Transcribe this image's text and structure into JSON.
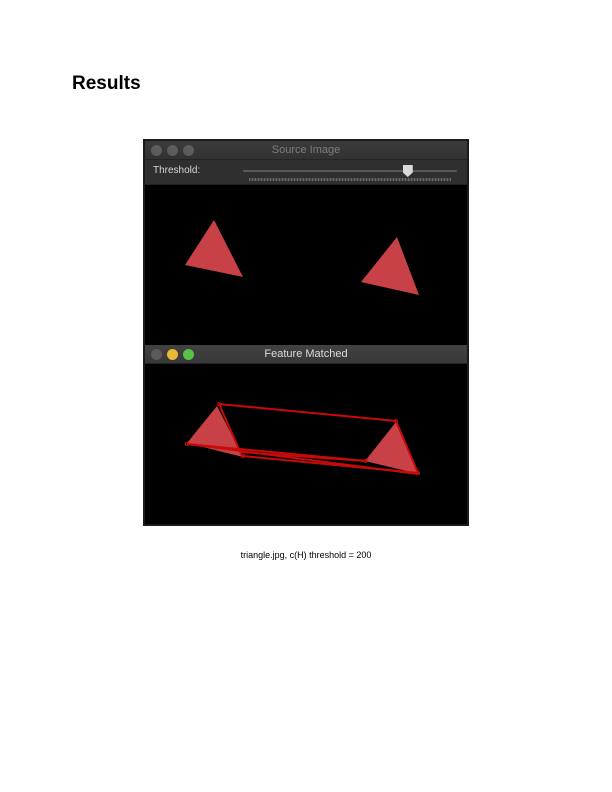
{
  "page": {
    "heading": "Results",
    "caption": "triangle.jpg, c(H) threshold = 200"
  },
  "source_window": {
    "title": "Source Image",
    "threshold_label": "Threshold:",
    "threshold_slider_fraction": 0.77
  },
  "matched_window": {
    "title": "Feature Matched"
  },
  "colors": {
    "triangle_fill": "#d9474c",
    "match_line": "#c80a0a",
    "traffic_yellow": "#e7b934",
    "traffic_green": "#58c146",
    "window_background": "#000000"
  }
}
